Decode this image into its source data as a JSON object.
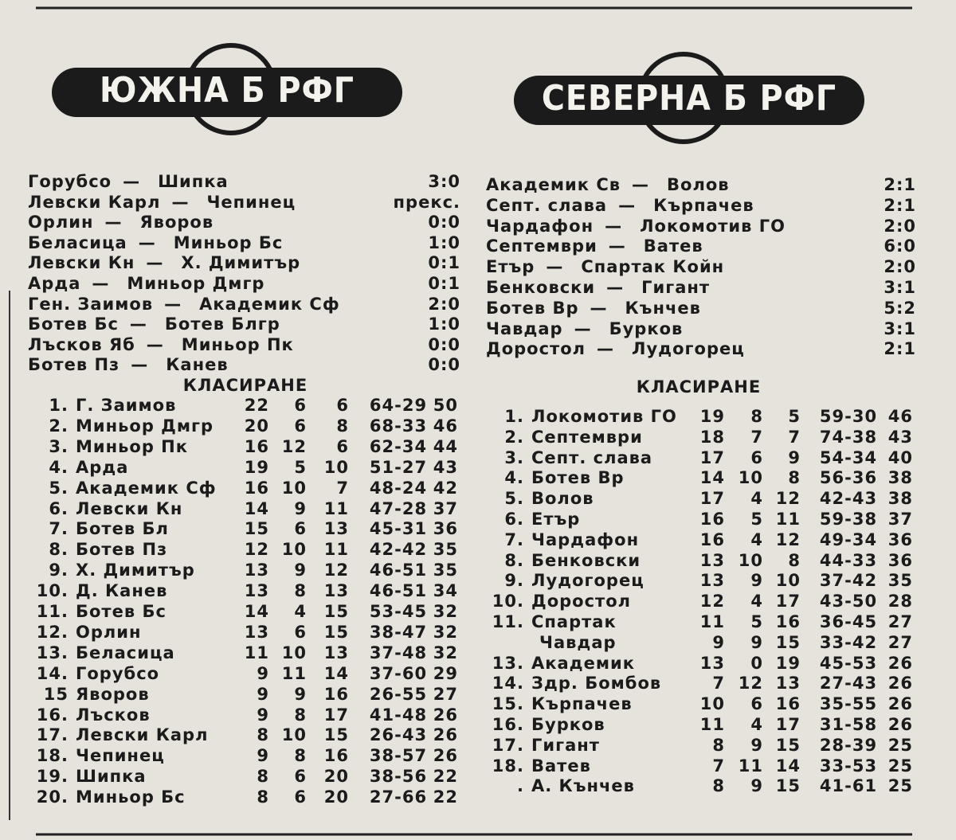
{
  "south": {
    "header": "ЮЖНА Б РФГ",
    "matches": [
      {
        "home": "Горубсо",
        "away": "Шипка",
        "score": "3:0"
      },
      {
        "home": "Левски Карл",
        "away": "Чепинец",
        "score": "прекс."
      },
      {
        "home": "Орлин",
        "away": "Яворов",
        "score": "0:0"
      },
      {
        "home": "Беласица",
        "away": "Миньор Бс",
        "score": "1:0"
      },
      {
        "home": "Левски Кн",
        "away": "Х. Димитър",
        "score": "0:1"
      },
      {
        "home": "Арда",
        "away": "Миньор Дмгр",
        "score": "0:1"
      },
      {
        "home": "Ген. Заимов",
        "away": "Академик Сф",
        "score": "2:0"
      },
      {
        "home": "Ботев Бс",
        "away": "Ботев Блгр",
        "score": "1:0"
      },
      {
        "home": "Лъсков Яб",
        "away": "Миньор Пк",
        "score": "0:0"
      },
      {
        "home": "Ботев Пз",
        "away": "Канев",
        "score": "0:0"
      }
    ],
    "standings_title": "КЛАСИРАНЕ",
    "standings": [
      {
        "rank": "1.",
        "team": "Г. Заимов",
        "w": 22,
        "d": 6,
        "l": 6,
        "goals": "64-29",
        "pts": 50
      },
      {
        "rank": "2.",
        "team": "Миньор Дмгр",
        "w": 20,
        "d": 6,
        "l": 8,
        "goals": "68-33",
        "pts": 46
      },
      {
        "rank": "3.",
        "team": "Миньор Пк",
        "w": 16,
        "d": 12,
        "l": 6,
        "goals": "62-34",
        "pts": 44
      },
      {
        "rank": "4.",
        "team": "Арда",
        "w": 19,
        "d": 5,
        "l": 10,
        "goals": "51-27",
        "pts": 43
      },
      {
        "rank": "5.",
        "team": "Академик Сф",
        "w": 16,
        "d": 10,
        "l": 7,
        "goals": "48-24",
        "pts": 42
      },
      {
        "rank": "6.",
        "team": "Левски Кн",
        "w": 14,
        "d": 9,
        "l": 11,
        "goals": "47-28",
        "pts": 37
      },
      {
        "rank": "7.",
        "team": "Ботев Бл",
        "w": 15,
        "d": 6,
        "l": 13,
        "goals": "45-31",
        "pts": 36
      },
      {
        "rank": "8.",
        "team": "Ботев Пз",
        "w": 12,
        "d": 10,
        "l": 11,
        "goals": "42-42",
        "pts": 35
      },
      {
        "rank": "9.",
        "team": "Х. Димитър",
        "w": 13,
        "d": 9,
        "l": 12,
        "goals": "46-51",
        "pts": 35
      },
      {
        "rank": "10.",
        "team": "Д. Канев",
        "w": 13,
        "d": 8,
        "l": 13,
        "goals": "46-51",
        "pts": 34
      },
      {
        "rank": "11.",
        "team": "Ботев Бс",
        "w": 14,
        "d": 4,
        "l": 15,
        "goals": "53-45",
        "pts": 32
      },
      {
        "rank": "12.",
        "team": "Орлин",
        "w": 13,
        "d": 6,
        "l": 15,
        "goals": "38-47",
        "pts": 32
      },
      {
        "rank": "13.",
        "team": "Беласица",
        "w": 11,
        "d": 10,
        "l": 13,
        "goals": "37-48",
        "pts": 32
      },
      {
        "rank": "14.",
        "team": "Горубсо",
        "w": 9,
        "d": 11,
        "l": 14,
        "goals": "37-60",
        "pts": 29
      },
      {
        "rank": "15",
        "team": "Яворов",
        "w": 9,
        "d": 9,
        "l": 16,
        "goals": "26-55",
        "pts": 27
      },
      {
        "rank": "16.",
        "team": "Лъсков",
        "w": 9,
        "d": 8,
        "l": 17,
        "goals": "41-48",
        "pts": 26
      },
      {
        "rank": "17.",
        "team": "Левски Карл",
        "w": 8,
        "d": 10,
        "l": 15,
        "goals": "26-43",
        "pts": 26
      },
      {
        "rank": "18.",
        "team": "Чепинец",
        "w": 9,
        "d": 8,
        "l": 16,
        "goals": "38-57",
        "pts": 26
      },
      {
        "rank": "19.",
        "team": "Шипка",
        "w": 8,
        "d": 6,
        "l": 20,
        "goals": "38-56",
        "pts": 22
      },
      {
        "rank": "20.",
        "team": "Миньор Бс",
        "w": 8,
        "d": 6,
        "l": 20,
        "goals": "27-66",
        "pts": 22
      }
    ]
  },
  "north": {
    "header": "СЕВЕРНА Б РФГ",
    "matches": [
      {
        "home": "Академик Св",
        "away": "Волов",
        "score": "2:1"
      },
      {
        "home": "Септ. слава",
        "away": "Кърпачев",
        "score": "2:1"
      },
      {
        "home": "Чардафон",
        "away": "Локомотив ГО",
        "score": "2:0"
      },
      {
        "home": "Септември",
        "away": "Ватев",
        "score": "6:0"
      },
      {
        "home": "Етър",
        "away": "Спартак Койн",
        "score": "2:0"
      },
      {
        "home": "Бенковски",
        "away": "Гигант",
        "score": "3:1"
      },
      {
        "home": "Ботев Вр",
        "away": "Кънчев",
        "score": "5:2"
      },
      {
        "home": "Чавдар",
        "away": "Бурков",
        "score": "3:1"
      },
      {
        "home": "Доростол",
        "away": "Лудогорец",
        "score": "2:1"
      }
    ],
    "standings_title": "КЛАСИРАНЕ",
    "standings": [
      {
        "rank": "1.",
        "team": "Локомотив ГО",
        "w": 19,
        "d": 8,
        "l": 5,
        "goals": "59-30",
        "pts": 46
      },
      {
        "rank": "2.",
        "team": "Септември",
        "w": 18,
        "d": 7,
        "l": 7,
        "goals": "74-38",
        "pts": 43
      },
      {
        "rank": "3.",
        "team": "Септ. слава",
        "w": 17,
        "d": 6,
        "l": 9,
        "goals": "54-34",
        "pts": 40
      },
      {
        "rank": "4.",
        "team": "Ботев Вр",
        "w": 14,
        "d": 10,
        "l": 8,
        "goals": "56-36",
        "pts": 38
      },
      {
        "rank": "5.",
        "team": "Волов",
        "w": 17,
        "d": 4,
        "l": 12,
        "goals": "42-43",
        "pts": 38
      },
      {
        "rank": "6.",
        "team": "Етър",
        "w": 16,
        "d": 5,
        "l": 11,
        "goals": "59-38",
        "pts": 37
      },
      {
        "rank": "7.",
        "team": "Чардафон",
        "w": 16,
        "d": 4,
        "l": 12,
        "goals": "49-34",
        "pts": 36
      },
      {
        "rank": "8.",
        "team": "Бенковски",
        "w": 13,
        "d": 10,
        "l": 8,
        "goals": "44-33",
        "pts": 36
      },
      {
        "rank": "9.",
        "team": "Лудогорец",
        "w": 13,
        "d": 9,
        "l": 10,
        "goals": "37-42",
        "pts": 35
      },
      {
        "rank": "10.",
        "team": "Доростол",
        "w": 12,
        "d": 4,
        "l": 17,
        "goals": "43-50",
        "pts": 28
      },
      {
        "rank": "11.",
        "team": "Спартак",
        "w": 11,
        "d": 5,
        "l": 16,
        "goals": "36-45",
        "pts": 27
      },
      {
        "team": "Чавдар",
        "w": 9,
        "d": 9,
        "l": 15,
        "goals": "33-42",
        "pts": 27
      },
      {
        "rank": "13.",
        "team": "Академик",
        "w": 13,
        "d": 0,
        "l": 19,
        "goals": "45-53",
        "pts": 26
      },
      {
        "rank": "14.",
        "team": "Здр. Бомбов",
        "w": 7,
        "d": 12,
        "l": 13,
        "goals": "27-43",
        "pts": 26
      },
      {
        "rank": "15.",
        "team": "Кърпачев",
        "w": 10,
        "d": 6,
        "l": 16,
        "goals": "35-55",
        "pts": 26
      },
      {
        "rank": "16.",
        "team": "Бурков",
        "w": 11,
        "d": 4,
        "l": 17,
        "goals": "31-58",
        "pts": 26
      },
      {
        "rank": "17.",
        "team": "Гигант",
        "w": 8,
        "d": 9,
        "l": 15,
        "goals": "28-39",
        "pts": 25
      },
      {
        "rank": "18.",
        "team": "Ватев",
        "w": 7,
        "d": 11,
        "l": 14,
        "goals": "33-53",
        "pts": 25
      },
      {
        "rank": ".",
        "team": "А. Кънчев",
        "w": 8,
        "d": 9,
        "l": 15,
        "goals": "41-61",
        "pts": 25
      }
    ]
  }
}
